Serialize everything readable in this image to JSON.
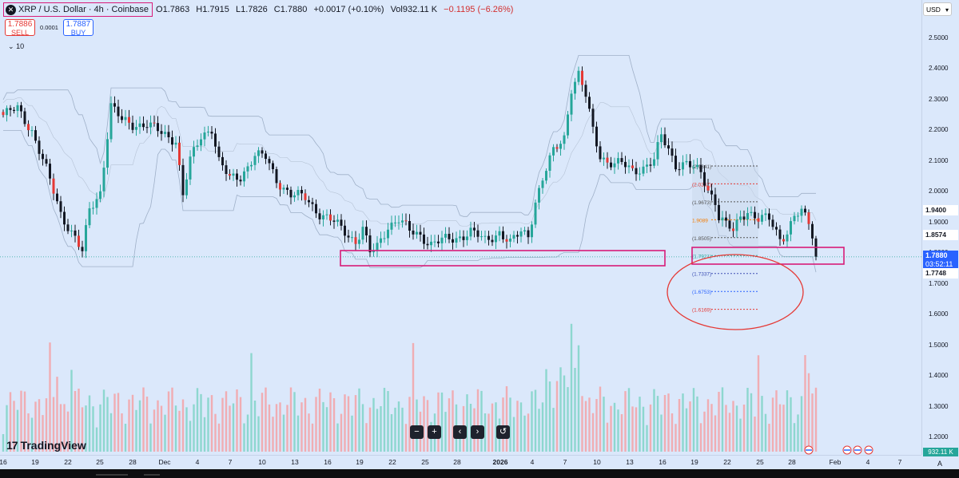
{
  "header": {
    "symbol": "XRP / U.S. Dollar · 4h · Coinbase",
    "logo": "✕",
    "open": "O1.7863",
    "high": "H1.7915",
    "low": "L1.7826",
    "close": "C1.7880",
    "change": "+0.0017 (+0.10%)",
    "vol_label": "Vol",
    "volume": "932.11 K",
    "vol_change": "−0.1195 (−6.26%)"
  },
  "trade": {
    "sell_price": "1.7886",
    "sell_label": "SELL",
    "spread": "0.0001",
    "buy_price": "1.7887",
    "buy_label": "BUY"
  },
  "indicator": {
    "label": "10",
    "icon": "chevron-down-icon"
  },
  "currency": "USD",
  "controls": {
    "zoom_out": "−",
    "zoom_in": "+",
    "scroll_left": "‹",
    "scroll_right": "›",
    "reset": "↺"
  },
  "brand": {
    "mark": "17",
    "name": "TradingView"
  },
  "axis": {
    "price_ticks": [
      "2.5000",
      "2.4000",
      "2.3000",
      "2.2000",
      "2.1000",
      "2.0000",
      "1.9000",
      "1.8000",
      "1.7000",
      "1.6000",
      "1.5000",
      "1.4000",
      "1.3000",
      "1.2000"
    ],
    "time_ticks": [
      {
        "label": "16",
        "bold": false
      },
      {
        "label": "19",
        "bold": false
      },
      {
        "label": "22",
        "bold": false
      },
      {
        "label": "25",
        "bold": false
      },
      {
        "label": "28",
        "bold": false
      },
      {
        "label": "Dec",
        "bold": false
      },
      {
        "label": "4",
        "bold": false
      },
      {
        "label": "7",
        "bold": false
      },
      {
        "label": "10",
        "bold": false
      },
      {
        "label": "13",
        "bold": false
      },
      {
        "label": "16",
        "bold": false
      },
      {
        "label": "19",
        "bold": false
      },
      {
        "label": "22",
        "bold": false
      },
      {
        "label": "25",
        "bold": false
      },
      {
        "label": "28",
        "bold": false
      },
      {
        "label": "2026",
        "bold": true
      },
      {
        "label": "4",
        "bold": false
      },
      {
        "label": "7",
        "bold": false
      },
      {
        "label": "10",
        "bold": false
      },
      {
        "label": "13",
        "bold": false
      },
      {
        "label": "16",
        "bold": false
      },
      {
        "label": "19",
        "bold": false
      },
      {
        "label": "22",
        "bold": false
      },
      {
        "label": "25",
        "bold": false
      },
      {
        "label": "28",
        "bold": false
      },
      {
        "label": "Feb",
        "bold": false
      },
      {
        "label": "4",
        "bold": false
      },
      {
        "label": "7",
        "bold": false
      }
    ],
    "auto_label": "A"
  },
  "price_labels": {
    "resistance": "1.9400",
    "level2": "1.8574",
    "current": "1.7880",
    "countdown": "03:52:11",
    "support": "1.7748",
    "volume": "932.11 K"
  },
  "fib_levels": [
    {
      "label": "(2.0841)",
      "price": 2.0841,
      "color": "#555555"
    },
    {
      "label": "(2.0257)",
      "price": 2.0257,
      "color": "#e53935"
    },
    {
      "label": "(1.9673)",
      "price": 1.9673,
      "color": "#555555"
    },
    {
      "label": "1.9089",
      "price": 1.9089,
      "color": "#f57c00"
    },
    {
      "label": "(1.8505)",
      "price": 1.8505,
      "color": "#555555"
    },
    {
      "label": "(1.7921)",
      "price": 1.7921,
      "color": "#26a69a"
    },
    {
      "label": "(1.7337)",
      "price": 1.7337,
      "color": "#3f51b5"
    },
    {
      "label": "(1.6753)",
      "price": 1.6753,
      "color": "#2962ff"
    },
    {
      "label": "(1.6169)",
      "price": 1.6169,
      "color": "#e53935"
    }
  ],
  "chart_data": {
    "type": "candlestick",
    "symbol": "XRP/USD",
    "interval": "4h",
    "ylim": [
      1.15,
      2.56
    ],
    "current_price": 1.788,
    "close_path": [
      [
        0,
        2.25
      ],
      [
        4,
        2.27
      ],
      [
        8,
        2.2
      ],
      [
        12,
        2.07
      ],
      [
        16,
        1.93
      ],
      [
        20,
        1.85
      ],
      [
        22,
        1.8
      ],
      [
        24,
        1.94
      ],
      [
        27,
        2.0
      ],
      [
        30,
        2.28
      ],
      [
        33,
        2.23
      ],
      [
        36,
        2.22
      ],
      [
        40,
        2.22
      ],
      [
        44,
        2.19
      ],
      [
        48,
        2.17
      ],
      [
        50,
        1.99
      ],
      [
        52,
        2.1
      ],
      [
        55,
        2.18
      ],
      [
        58,
        2.21
      ],
      [
        60,
        2.1
      ],
      [
        63,
        2.04
      ],
      [
        66,
        2.05
      ],
      [
        70,
        2.12
      ],
      [
        73,
        2.11
      ],
      [
        76,
        2.04
      ],
      [
        80,
        1.99
      ],
      [
        84,
        1.98
      ],
      [
        88,
        1.93
      ],
      [
        92,
        1.9
      ],
      [
        96,
        1.86
      ],
      [
        98,
        1.84
      ],
      [
        100,
        1.88
      ],
      [
        102,
        1.8
      ],
      [
        104,
        1.82
      ],
      [
        107,
        1.89
      ],
      [
        110,
        1.91
      ],
      [
        113,
        1.87
      ],
      [
        116,
        1.86
      ],
      [
        119,
        1.83
      ],
      [
        122,
        1.84
      ],
      [
        126,
        1.85
      ],
      [
        130,
        1.87
      ],
      [
        134,
        1.84
      ],
      [
        138,
        1.87
      ],
      [
        141,
        1.83
      ],
      [
        144,
        1.87
      ],
      [
        146,
        1.86
      ],
      [
        148,
        1.97
      ],
      [
        150,
        2.04
      ],
      [
        153,
        2.13
      ],
      [
        156,
        2.18
      ],
      [
        158,
        2.34
      ],
      [
        160,
        2.38
      ],
      [
        162,
        2.31
      ],
      [
        164,
        2.2
      ],
      [
        166,
        2.12
      ],
      [
        168,
        2.1
      ],
      [
        170,
        2.09
      ],
      [
        172,
        2.09
      ],
      [
        175,
        2.07
      ],
      [
        178,
        2.08
      ],
      [
        181,
        2.1
      ],
      [
        183,
        2.18
      ],
      [
        185,
        2.14
      ],
      [
        187,
        2.09
      ],
      [
        190,
        2.09
      ],
      [
        194,
        2.06
      ],
      [
        196,
        2.01
      ],
      [
        198,
        1.97
      ],
      [
        199,
        1.92
      ],
      [
        201,
        1.89
      ],
      [
        203,
        1.87
      ],
      [
        205,
        1.92
      ],
      [
        207,
        1.94
      ],
      [
        210,
        1.91
      ],
      [
        213,
        1.91
      ],
      [
        216,
        1.85
      ],
      [
        218,
        1.87
      ],
      [
        220,
        1.92
      ],
      [
        222,
        1.93
      ],
      [
        224,
        1.9
      ],
      [
        225,
        1.86
      ],
      [
        226,
        1.79
      ]
    ],
    "levels": {
      "resistance": 1.94,
      "level2": 1.8574,
      "support": 1.7748
    },
    "time_ticks": [
      "16",
      "19",
      "22",
      "25",
      "28",
      "Dec",
      "4",
      "7",
      "10",
      "13",
      "16",
      "19",
      "22",
      "25",
      "28",
      "2026",
      "4",
      "7",
      "10",
      "13",
      "16",
      "19",
      "22",
      "25",
      "28",
      "Feb",
      "4",
      "7"
    ]
  }
}
